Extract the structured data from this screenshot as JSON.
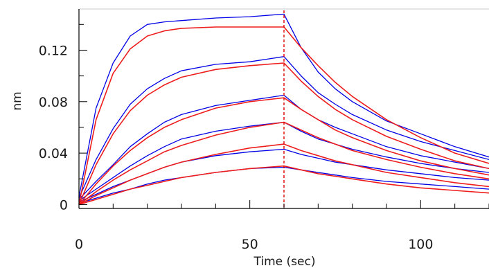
{
  "chart_data": {
    "type": "line",
    "title": "",
    "xlabel": "Time (sec)",
    "ylabel": "nm",
    "xlim": [
      0,
      120
    ],
    "ylim": [
      -0.003,
      0.152
    ],
    "x_ticks": [
      0,
      50,
      100
    ],
    "x_tick_labels": [
      "0",
      "50",
      "100"
    ],
    "y_ticks": [
      0,
      0.04,
      0.08,
      0.12
    ],
    "y_tick_labels": [
      "0",
      "0.04",
      "0.08",
      "0.12"
    ],
    "x_minor_step": 10,
    "y_minor_step": 0.02,
    "grid": false,
    "legend": "none",
    "marker_line_x": 60,
    "x": [
      0,
      5,
      10,
      15,
      20,
      25,
      30,
      40,
      50,
      60,
      65,
      70,
      75,
      80,
      90,
      100,
      110,
      120
    ],
    "series": [
      {
        "role": "measured",
        "color": "#0000e6",
        "values": [
          0.006,
          0.075,
          0.11,
          0.131,
          0.14,
          0.142,
          0.143,
          0.145,
          0.146,
          0.148,
          0.122,
          0.103,
          0.09,
          0.08,
          0.065,
          0.055,
          0.045,
          0.037
        ]
      },
      {
        "role": "fit",
        "color": "#ee1c1c",
        "values": [
          0.0,
          0.066,
          0.102,
          0.121,
          0.131,
          0.135,
          0.137,
          0.138,
          0.138,
          0.138,
          0.122,
          0.108,
          0.095,
          0.084,
          0.066,
          0.052,
          0.04,
          0.032
        ]
      },
      {
        "role": "measured",
        "color": "#0000e6",
        "values": [
          0.005,
          0.035,
          0.059,
          0.078,
          0.09,
          0.098,
          0.104,
          0.109,
          0.111,
          0.115,
          0.1,
          0.087,
          0.078,
          0.07,
          0.058,
          0.049,
          0.042,
          0.035
        ]
      },
      {
        "role": "fit",
        "color": "#ee1c1c",
        "values": [
          0.0,
          0.031,
          0.055,
          0.073,
          0.085,
          0.093,
          0.099,
          0.105,
          0.108,
          0.11,
          0.096,
          0.084,
          0.074,
          0.066,
          0.053,
          0.043,
          0.034,
          0.028
        ]
      },
      {
        "role": "measured",
        "color": "#0000e6",
        "values": [
          0.004,
          0.018,
          0.031,
          0.045,
          0.055,
          0.064,
          0.07,
          0.077,
          0.081,
          0.085,
          0.074,
          0.066,
          0.06,
          0.055,
          0.045,
          0.038,
          0.033,
          0.028
        ]
      },
      {
        "role": "fit",
        "color": "#ee1c1c",
        "values": [
          0.0,
          0.016,
          0.03,
          0.042,
          0.052,
          0.06,
          0.066,
          0.075,
          0.08,
          0.083,
          0.074,
          0.066,
          0.058,
          0.052,
          0.042,
          0.034,
          0.028,
          0.023
        ]
      },
      {
        "role": "measured",
        "color": "#0000e6",
        "values": [
          0.003,
          0.012,
          0.021,
          0.03,
          0.038,
          0.045,
          0.051,
          0.057,
          0.061,
          0.064,
          0.057,
          0.051,
          0.047,
          0.043,
          0.037,
          0.032,
          0.028,
          0.025
        ]
      },
      {
        "role": "fit",
        "color": "#ee1c1c",
        "values": [
          0.0,
          0.01,
          0.019,
          0.027,
          0.034,
          0.041,
          0.046,
          0.054,
          0.06,
          0.064,
          0.058,
          0.052,
          0.047,
          0.042,
          0.035,
          0.029,
          0.024,
          0.02
        ]
      },
      {
        "role": "measured",
        "color": "#0000e6",
        "values": [
          0.002,
          0.008,
          0.014,
          0.019,
          0.024,
          0.029,
          0.033,
          0.038,
          0.041,
          0.043,
          0.039,
          0.036,
          0.033,
          0.031,
          0.027,
          0.024,
          0.021,
          0.019
        ]
      },
      {
        "role": "fit",
        "color": "#ee1c1c",
        "values": [
          0.0,
          0.007,
          0.013,
          0.019,
          0.024,
          0.029,
          0.033,
          0.039,
          0.044,
          0.047,
          0.042,
          0.038,
          0.034,
          0.031,
          0.025,
          0.021,
          0.017,
          0.014
        ]
      },
      {
        "role": "measured",
        "color": "#0000e6",
        "values": [
          0.001,
          0.005,
          0.009,
          0.012,
          0.016,
          0.019,
          0.021,
          0.025,
          0.028,
          0.029,
          0.027,
          0.025,
          0.023,
          0.021,
          0.018,
          0.016,
          0.014,
          0.012
        ]
      },
      {
        "role": "fit",
        "color": "#ee1c1c",
        "values": [
          0.0,
          0.004,
          0.008,
          0.012,
          0.015,
          0.018,
          0.021,
          0.025,
          0.028,
          0.03,
          0.027,
          0.024,
          0.022,
          0.02,
          0.016,
          0.013,
          0.011,
          0.009
        ]
      }
    ]
  }
}
